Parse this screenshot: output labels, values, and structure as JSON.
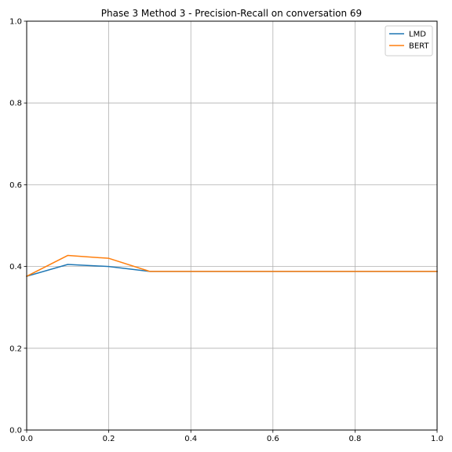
{
  "chart_data": {
    "type": "line",
    "title": "Phase 3 Method 3 - Precision-Recall on conversation 69",
    "xlabel": "",
    "ylabel": "",
    "xlim": [
      0.0,
      1.0
    ],
    "ylim": [
      0.0,
      1.0
    ],
    "grid": true,
    "legend_position": "top-right",
    "x_ticks": [
      "0.0",
      "0.2",
      "0.4",
      "0.6",
      "0.8",
      "1.0"
    ],
    "y_ticks": [
      "0.0",
      "0.2",
      "0.4",
      "0.6",
      "0.8",
      "1.0"
    ],
    "x": [
      0.0,
      0.1,
      0.2,
      0.3,
      0.4,
      0.5,
      0.6,
      0.7,
      0.8,
      0.9,
      1.0
    ],
    "series": [
      {
        "name": "LMD",
        "color": "#1f77b4",
        "values": [
          0.376,
          0.405,
          0.4,
          0.388,
          0.388,
          0.388,
          0.388,
          0.388,
          0.388,
          0.388,
          0.388
        ]
      },
      {
        "name": "BERT",
        "color": "#ff7f0e",
        "values": [
          0.376,
          0.427,
          0.42,
          0.388,
          0.388,
          0.388,
          0.388,
          0.388,
          0.388,
          0.388,
          0.388
        ]
      }
    ]
  }
}
